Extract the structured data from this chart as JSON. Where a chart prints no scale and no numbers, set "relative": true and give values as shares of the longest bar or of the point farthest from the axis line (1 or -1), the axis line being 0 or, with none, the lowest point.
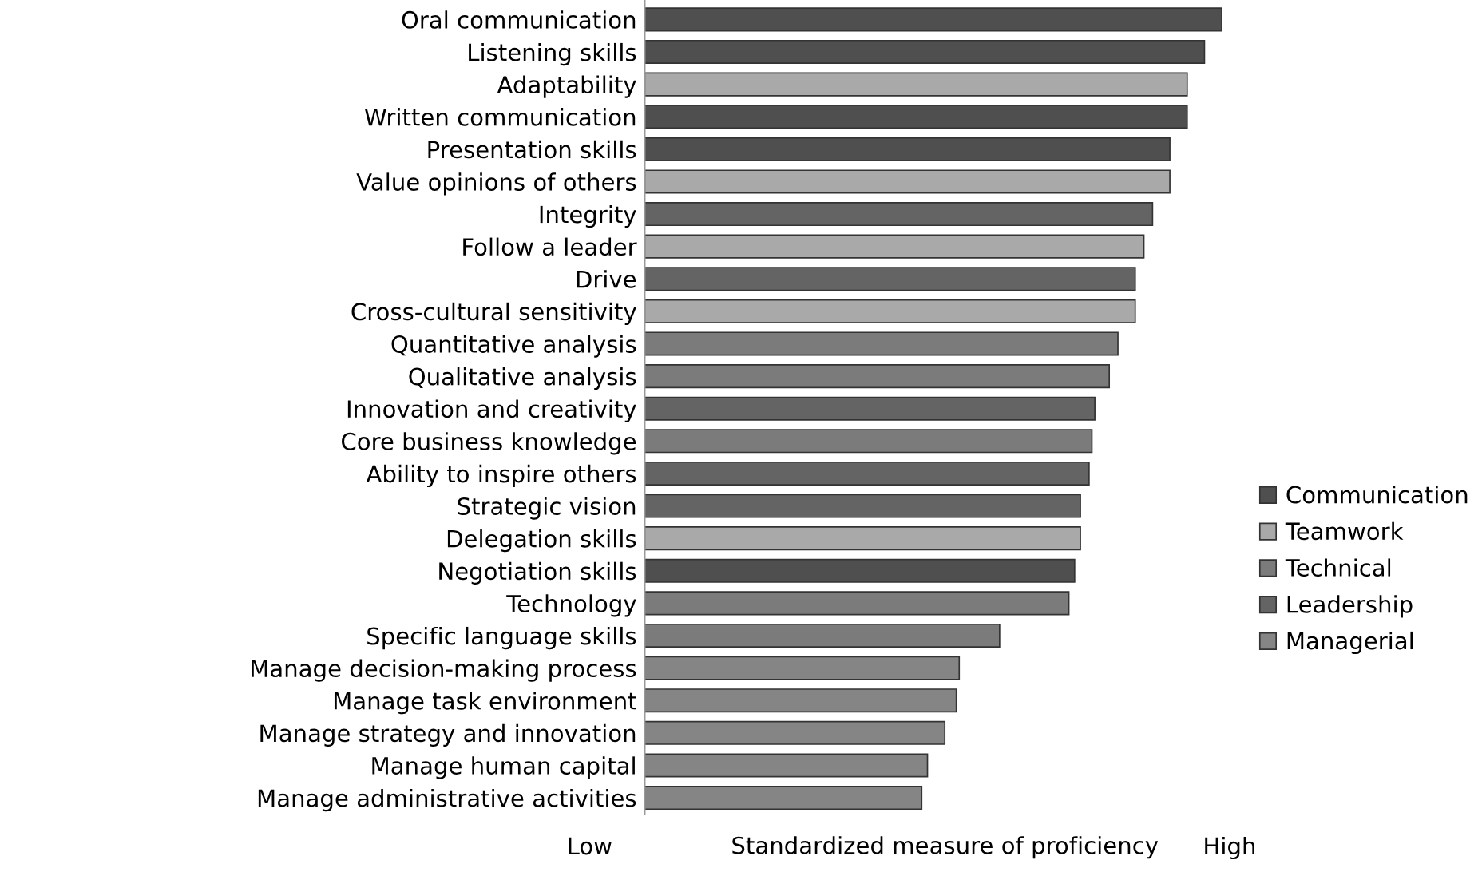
{
  "chart_data": {
    "type": "bar",
    "orientation": "horizontal",
    "relative": true,
    "xlabel": "Standardized measure of proficiency",
    "annotations": [
      "Low",
      "High"
    ],
    "categories": [
      "Oral communication",
      "Listening skills",
      "Adaptability",
      "Written communication",
      "Presentation skills",
      "Value opinions of others",
      "Integrity",
      "Follow a leader",
      "Drive",
      "Cross-cultural sensitivity",
      "Quantitative analysis",
      "Qualitative analysis",
      "Innovation and creativity",
      "Core business knowledge",
      "Ability to inspire others",
      "Strategic vision",
      "Delegation skills",
      "Negotiation skills",
      "Technology",
      "Specific language skills",
      "Manage decision-making process",
      "Manage task environment",
      "Manage strategy and innovation",
      "Manage human capital",
      "Manage administrative activities"
    ],
    "series": [
      {
        "name": "Communication",
        "color": "#4f4f4f",
        "values": [
          1,
          0.97,
          null,
          0.94,
          0.91,
          null,
          null,
          null,
          null,
          null,
          null,
          null,
          null,
          null,
          null,
          null,
          null,
          0.745,
          null,
          null,
          null,
          null,
          null,
          null,
          null
        ]
      },
      {
        "name": "Teamwork",
        "color": "#a9a9a9",
        "values": [
          null,
          null,
          0.94,
          null,
          null,
          0.91,
          null,
          0.865,
          null,
          0.85,
          null,
          null,
          null,
          null,
          null,
          null,
          0.755,
          null,
          null,
          null,
          null,
          null,
          null,
          null,
          null
        ]
      },
      {
        "name": "Technical",
        "color": "#7b7b7b",
        "values": [
          null,
          null,
          null,
          null,
          null,
          null,
          null,
          null,
          null,
          null,
          0.82,
          0.805,
          null,
          0.775,
          null,
          null,
          null,
          null,
          0.735,
          0.615,
          null,
          null,
          null,
          null,
          null
        ]
      },
      {
        "name": "Leadership",
        "color": "#646464",
        "values": [
          null,
          null,
          null,
          null,
          null,
          null,
          0.88,
          null,
          0.85,
          null,
          null,
          null,
          0.78,
          null,
          0.77,
          0.755,
          null,
          null,
          null,
          null,
          null,
          null,
          null,
          null,
          null
        ]
      },
      {
        "name": "Managerial",
        "color": "#858585",
        "values": [
          null,
          null,
          null,
          null,
          null,
          null,
          null,
          null,
          null,
          null,
          null,
          null,
          null,
          null,
          null,
          null,
          null,
          null,
          null,
          null,
          0.545,
          0.54,
          0.52,
          0.49,
          0.48
        ]
      }
    ],
    "legend": "right",
    "grid": false
  }
}
